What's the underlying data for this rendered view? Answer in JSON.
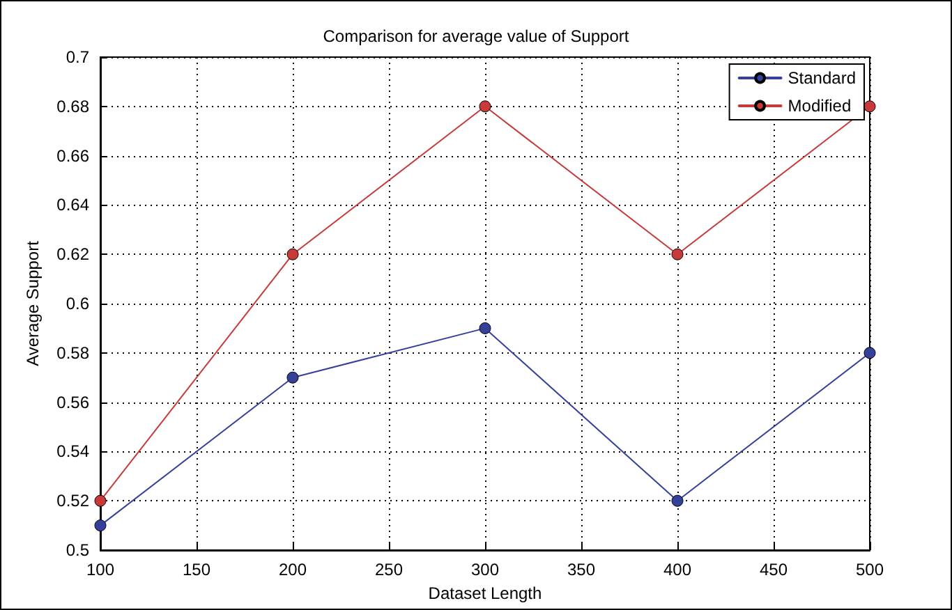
{
  "chart_data": {
    "type": "line",
    "title": "Comparison for average value of Support",
    "xlabel": "Dataset Length",
    "ylabel": "Average Support",
    "x": [
      100,
      200,
      300,
      400,
      500
    ],
    "series": [
      {
        "name": "Standard",
        "color": "#34409a",
        "values": [
          0.51,
          0.57,
          0.59,
          0.52,
          0.58
        ]
      },
      {
        "name": "Modified",
        "color": "#c83a3a",
        "values": [
          0.52,
          0.62,
          0.68,
          0.62,
          0.68
        ]
      }
    ],
    "xlim": [
      100,
      500
    ],
    "xticks": [
      100,
      150,
      200,
      250,
      300,
      350,
      400,
      450,
      500
    ],
    "ylim": [
      0.5,
      0.7
    ],
    "yticks": [
      0.5,
      0.52,
      0.54,
      0.56,
      0.58,
      0.6,
      0.62,
      0.64,
      0.66,
      0.68,
      0.7
    ],
    "grid": true,
    "legend": "top right",
    "marker": "circle",
    "line_style": "solid"
  }
}
